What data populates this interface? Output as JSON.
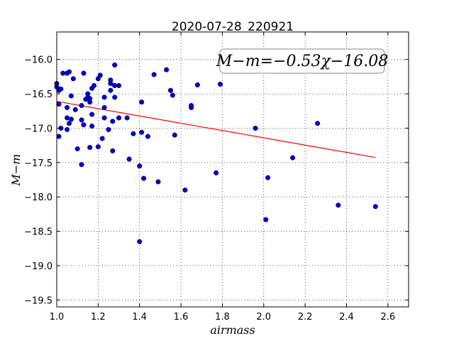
{
  "chart_data": {
    "type": "scatter",
    "title": "2020-07-28_220921",
    "xlabel": "airmass",
    "ylabel": "M−m",
    "xlim": [
      1.0,
      2.7
    ],
    "ylim": [
      -19.6,
      -15.6
    ],
    "xticks": [
      1.0,
      1.2,
      1.4,
      1.6,
      1.8,
      2.0,
      2.2,
      2.4,
      2.6
    ],
    "xtick_labels": [
      "1.0",
      "1.2",
      "1.4",
      "1.6",
      "1.8",
      "2.0",
      "2.2",
      "2.4",
      "2.6"
    ],
    "yticks": [
      -16.0,
      -16.5,
      -17.0,
      -17.5,
      -18.0,
      -18.5,
      -19.0,
      -19.5
    ],
    "ytick_labels": [
      "−16.0",
      "−16.5",
      "−17.0",
      "−17.5",
      "−18.0",
      "−18.5",
      "−19.0",
      "−19.5"
    ],
    "grid": true,
    "annotation": {
      "text": "M−m=−0.53χ−16.08",
      "position": "top-right"
    },
    "fit_line": {
      "slope": -0.53,
      "intercept": -16.08,
      "x_range": [
        1.0,
        2.54
      ],
      "color": "#ff0000"
    },
    "point_color": "#0000cc",
    "points": [
      [
        1.0,
        -16.35
      ],
      [
        1.0,
        -16.4
      ],
      [
        1.01,
        -16.45
      ],
      [
        1.01,
        -16.65
      ],
      [
        1.01,
        -17.12
      ],
      [
        1.02,
        -17.0
      ],
      [
        1.02,
        -16.43
      ],
      [
        1.03,
        -16.2
      ],
      [
        1.05,
        -16.2
      ],
      [
        1.06,
        -16.18
      ],
      [
        1.05,
        -16.7
      ],
      [
        1.05,
        -16.85
      ],
      [
        1.05,
        -17.02
      ],
      [
        1.06,
        -16.93
      ],
      [
        1.07,
        -16.87
      ],
      [
        1.07,
        -16.53
      ],
      [
        1.08,
        -16.28
      ],
      [
        1.09,
        -16.73
      ],
      [
        1.1,
        -17.3
      ],
      [
        1.12,
        -16.67
      ],
      [
        1.12,
        -16.88
      ],
      [
        1.12,
        -17.53
      ],
      [
        1.13,
        -16.2
      ],
      [
        1.13,
        -16.95
      ],
      [
        1.14,
        -16.58
      ],
      [
        1.15,
        -16.55
      ],
      [
        1.15,
        -16.5
      ],
      [
        1.16,
        -16.57
      ],
      [
        1.16,
        -16.62
      ],
      [
        1.16,
        -17.28
      ],
      [
        1.17,
        -16.42
      ],
      [
        1.17,
        -16.8
      ],
      [
        1.17,
        -16.97
      ],
      [
        1.18,
        -16.38
      ],
      [
        1.2,
        -17.27
      ],
      [
        1.2,
        -16.28
      ],
      [
        1.21,
        -16.23
      ],
      [
        1.22,
        -17.15
      ],
      [
        1.23,
        -16.7
      ],
      [
        1.23,
        -16.85
      ],
      [
        1.23,
        -16.55
      ],
      [
        1.25,
        -17.02
      ],
      [
        1.26,
        -16.45
      ],
      [
        1.26,
        -16.3
      ],
      [
        1.26,
        -16.35
      ],
      [
        1.27,
        -16.9
      ],
      [
        1.27,
        -17.33
      ],
      [
        1.28,
        -16.08
      ],
      [
        1.28,
        -16.38
      ],
      [
        1.28,
        -16.55
      ],
      [
        1.3,
        -16.38
      ],
      [
        1.3,
        -16.85
      ],
      [
        1.34,
        -16.85
      ],
      [
        1.35,
        -17.45
      ],
      [
        1.37,
        -17.08
      ],
      [
        1.4,
        -17.55
      ],
      [
        1.41,
        -17.06
      ],
      [
        1.41,
        -16.62
      ],
      [
        1.4,
        -18.65
      ],
      [
        1.42,
        -17.73
      ],
      [
        1.44,
        -17.12
      ],
      [
        1.47,
        -16.22
      ],
      [
        1.49,
        -17.78
      ],
      [
        1.53,
        -16.15
      ],
      [
        1.55,
        -16.45
      ],
      [
        1.56,
        -16.52
      ],
      [
        1.57,
        -17.1
      ],
      [
        1.62,
        -17.9
      ],
      [
        1.65,
        -16.7
      ],
      [
        1.65,
        -16.67
      ],
      [
        1.68,
        -16.37
      ],
      [
        1.77,
        -17.65
      ],
      [
        1.79,
        -16.36
      ],
      [
        1.96,
        -17.0
      ],
      [
        2.01,
        -18.33
      ],
      [
        2.02,
        -17.72
      ],
      [
        2.14,
        -17.43
      ],
      [
        2.26,
        -16.93
      ],
      [
        2.36,
        -18.12
      ],
      [
        2.54,
        -18.14
      ]
    ]
  }
}
